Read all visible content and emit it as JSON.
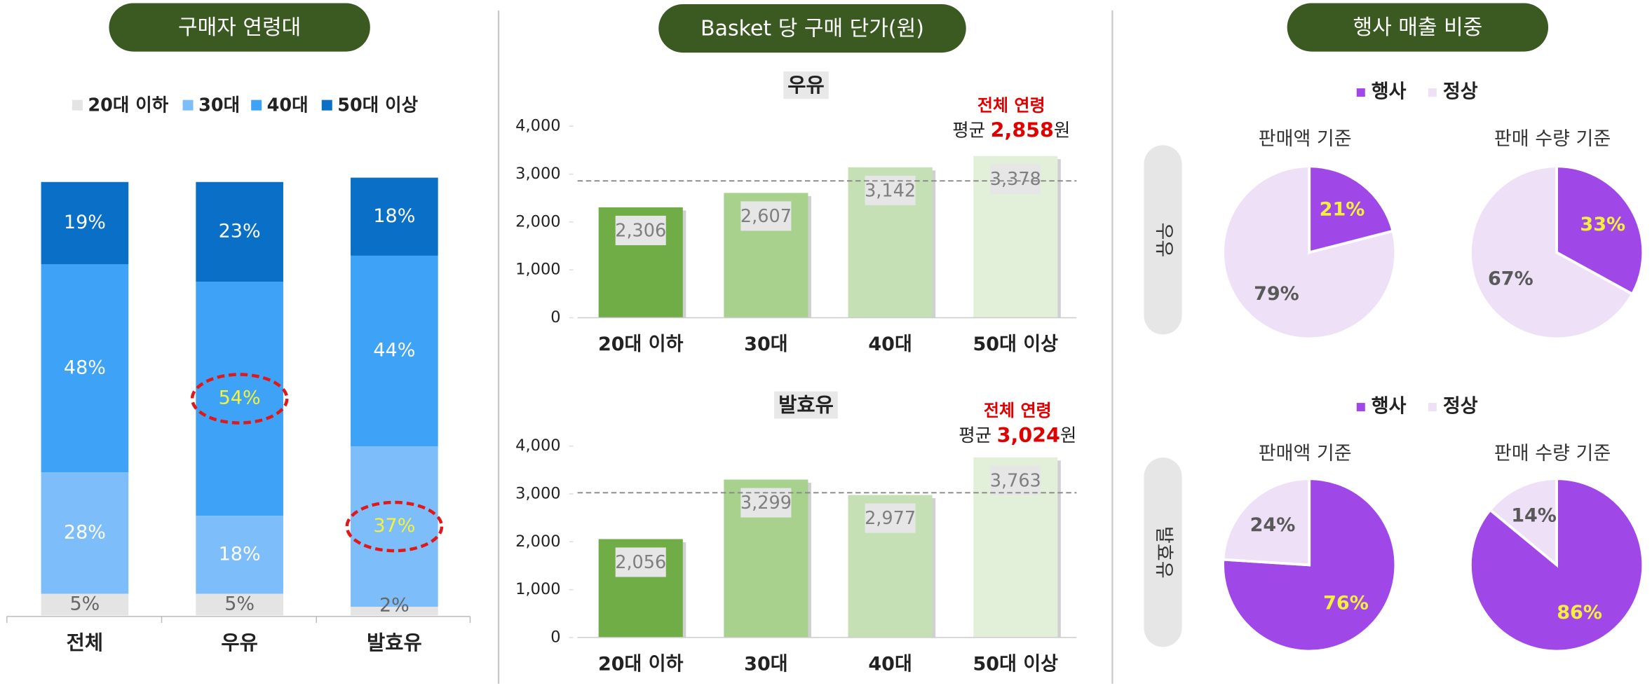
{
  "chart_data": [
    {
      "type": "stacked_bar",
      "title": "구매자 연령대",
      "categories": [
        "전체",
        "우유",
        "발효유"
      ],
      "series": [
        {
          "name": "20대 이하",
          "color": "#e4e4e4",
          "values": [
            5,
            5,
            2
          ],
          "value_labels": [
            "5%",
            "5%",
            "2%"
          ]
        },
        {
          "name": "30대",
          "color": "#7dbdfa",
          "values": [
            28,
            18,
            37
          ],
          "value_labels": [
            "28%",
            "18%",
            "37%"
          ]
        },
        {
          "name": "40대",
          "color": "#3ea2f7",
          "values": [
            48,
            54,
            44
          ],
          "value_labels": [
            "48%",
            "54%",
            "44%"
          ]
        },
        {
          "name": "50대 이상",
          "color": "#0a6fc6",
          "values": [
            19,
            23,
            18
          ],
          "value_labels": [
            "19%",
            "23%",
            "18%"
          ]
        }
      ],
      "ylim": [
        0,
        100
      ],
      "legend": "top",
      "highlights": [
        {
          "series": 2,
          "index": 1
        },
        {
          "series": 1,
          "index": 2
        }
      ]
    },
    {
      "type": "bar",
      "panel_title": "Basket 당 구매 단가(원)",
      "title": "우유",
      "categories": [
        "20대 이하",
        "30대",
        "40대",
        "50대 이상"
      ],
      "values": [
        2306,
        2607,
        3142,
        3378
      ],
      "value_labels": [
        "2,306",
        "2,607",
        "3,142",
        "3,378"
      ],
      "colors": [
        "#70ad47",
        "#a9d18e",
        "#c5e0b4",
        "#e2f0d9"
      ],
      "ylim": [
        0,
        4000
      ],
      "yticks": [
        0,
        {
          "value": 1000,
          "label": "1,000"
        },
        {
          "value": 2000,
          "label": "2,000"
        },
        {
          "value": 3000,
          "label": "3,000"
        },
        {
          "value": 4000,
          "label": "4,000"
        }
      ],
      "annotation": "전체 연령",
      "average_prefix": "평균",
      "average": 2858,
      "average_label": "2,858",
      "average_unit": "원"
    },
    {
      "type": "bar",
      "title": "발효유",
      "categories": [
        "20대 이하",
        "30대",
        "40대",
        "50대 이상"
      ],
      "values": [
        2056,
        3299,
        2977,
        3763
      ],
      "value_labels": [
        "2,056",
        "3,299",
        "2,977",
        "3,763"
      ],
      "colors": [
        "#70ad47",
        "#a9d18e",
        "#c5e0b4",
        "#e2f0d9"
      ],
      "ylim": [
        0,
        4000
      ],
      "yticks": [
        0,
        {
          "value": 1000,
          "label": "1,000"
        },
        {
          "value": 2000,
          "label": "2,000"
        },
        {
          "value": 3000,
          "label": "3,000"
        },
        {
          "value": 4000,
          "label": "4,000"
        }
      ],
      "annotation": "전체 연령",
      "average_prefix": "평균",
      "average": 3024,
      "average_label": "3,024",
      "average_unit": "원"
    },
    {
      "type": "pie",
      "panel_title": "행사 매출 비중",
      "group": "우유",
      "title": "판매액 기준",
      "categories": [
        "행사",
        "정상"
      ],
      "legend": "top",
      "colors": [
        "#a047e8",
        "#ede0f7"
      ],
      "values": [
        21,
        79
      ],
      "value_labels": [
        "21%",
        "79%"
      ]
    },
    {
      "type": "pie",
      "title": "판매 수량 기준",
      "colors": [
        "#a047e8",
        "#ede0f7"
      ],
      "values": [
        33,
        67
      ],
      "value_labels": [
        "33%",
        "67%"
      ]
    },
    {
      "type": "pie",
      "group": "발효유",
      "title": "판매액 기준",
      "categories": [
        "행사",
        "정상"
      ],
      "legend": "top",
      "colors": [
        "#a047e8",
        "#ede0f7"
      ],
      "values": [
        76,
        24
      ],
      "value_labels": [
        "76%",
        "24%"
      ]
    },
    {
      "type": "pie",
      "title": "판매 수량 기준",
      "colors": [
        "#a047e8",
        "#ede0f7"
      ],
      "values": [
        86,
        14
      ],
      "value_labels": [
        "86%",
        "14%"
      ]
    }
  ]
}
